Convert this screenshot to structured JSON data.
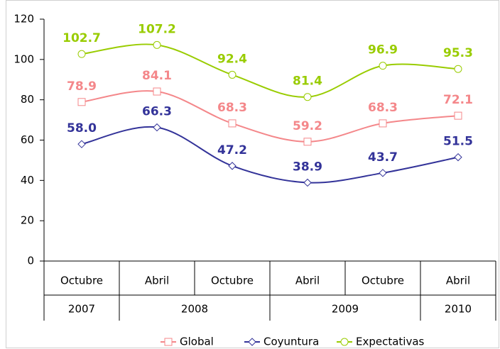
{
  "chart_data": {
    "type": "line",
    "categories": [
      "Octubre",
      "Abril",
      "Octubre",
      "Abril",
      "Octubre",
      "Abril"
    ],
    "category_groups": [
      {
        "label": "2007",
        "count": 1
      },
      {
        "label": "2008",
        "count": 2
      },
      {
        "label": "2009",
        "count": 2
      },
      {
        "label": "2010",
        "count": 1
      }
    ],
    "series": [
      {
        "name": "Global",
        "color": "#f4878a",
        "marker": "square",
        "values": [
          78.9,
          84.1,
          68.3,
          59.2,
          68.3,
          72.1
        ],
        "value_labels": [
          "78.9",
          "84.1",
          "68.3",
          "59.2",
          "68.3",
          "72.1"
        ]
      },
      {
        "name": "Coyuntura",
        "color": "#333399",
        "marker": "diamond",
        "values": [
          58.0,
          66.3,
          47.2,
          38.9,
          43.7,
          51.5
        ],
        "value_labels": [
          "58.0",
          "66.3",
          "47.2",
          "38.9",
          "43.7",
          "51.5"
        ]
      },
      {
        "name": "Expectativas",
        "color": "#99cc00",
        "marker": "circle",
        "values": [
          102.7,
          107.2,
          92.4,
          81.4,
          96.9,
          95.3
        ],
        "value_labels": [
          "102.7",
          "107.2",
          "92.4",
          "81.4",
          "96.9",
          "95.3"
        ]
      }
    ],
    "ylim": [
      0,
      120
    ],
    "yticks": [
      0,
      20,
      40,
      60,
      80,
      100,
      120
    ],
    "smooth": true,
    "legend": "bottom"
  }
}
